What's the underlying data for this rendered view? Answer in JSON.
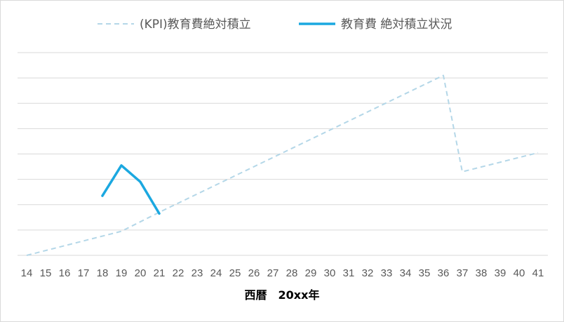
{
  "chart_data": {
    "type": "line",
    "title": "",
    "xlabel": "西暦　20xx年",
    "ylabel": "",
    "x": [
      14,
      15,
      16,
      17,
      18,
      19,
      20,
      21,
      22,
      23,
      24,
      25,
      26,
      27,
      28,
      29,
      30,
      31,
      32,
      33,
      34,
      35,
      36,
      37,
      38,
      39,
      40,
      41
    ],
    "ylim": [
      0,
      8
    ],
    "grid": true,
    "legend_position": "top",
    "series": [
      {
        "name": "(KPI)教育費絶対積立",
        "style": "dashed",
        "color": "#b4d7e8",
        "points": [
          [
            14,
            0
          ],
          [
            19,
            0.95
          ],
          [
            21,
            1.7
          ],
          [
            36,
            7.1
          ],
          [
            37,
            3.3
          ],
          [
            41,
            4.05
          ]
        ]
      },
      {
        "name": "教育費 絶対積立状況",
        "style": "solid",
        "color": "#1ba8e0",
        "points": [
          [
            18,
            2.35
          ],
          [
            19,
            3.55
          ],
          [
            20,
            2.9
          ],
          [
            21,
            1.65
          ]
        ]
      }
    ]
  }
}
